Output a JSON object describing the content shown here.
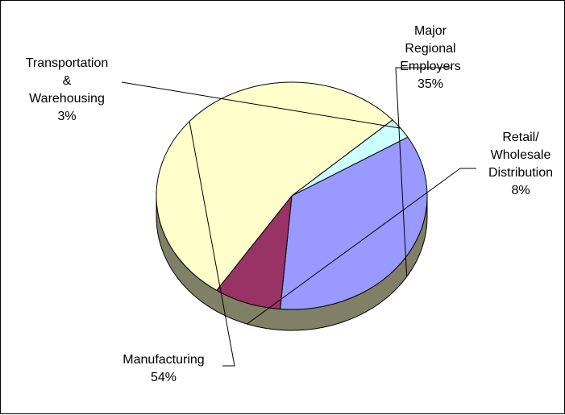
{
  "chart_data": {
    "type": "pie",
    "categories": [
      "Major Regional Employers",
      "Retail/ Wholesale Distribution",
      "Manufacturing",
      "Transportation & Warehousing"
    ],
    "values": [
      35,
      8,
      54,
      3
    ],
    "labels": [
      {
        "lines": [
          "Major",
          "Regional",
          "Employers"
        ],
        "pct": "35%"
      },
      {
        "lines": [
          "Retail/",
          "Wholesale",
          "Distribution"
        ],
        "pct": "8%"
      },
      {
        "lines": [
          "Manufacturing"
        ],
        "pct": "54%"
      },
      {
        "lines": [
          "Transportation",
          "&",
          "Warehousing"
        ],
        "pct": "3%"
      }
    ],
    "colors": [
      "#9999ff",
      "#993366",
      "#ffffcc",
      "#ccffff"
    ],
    "side_color": "#808066",
    "legend": "none",
    "style": "3d-pie-with-leader-lines"
  }
}
